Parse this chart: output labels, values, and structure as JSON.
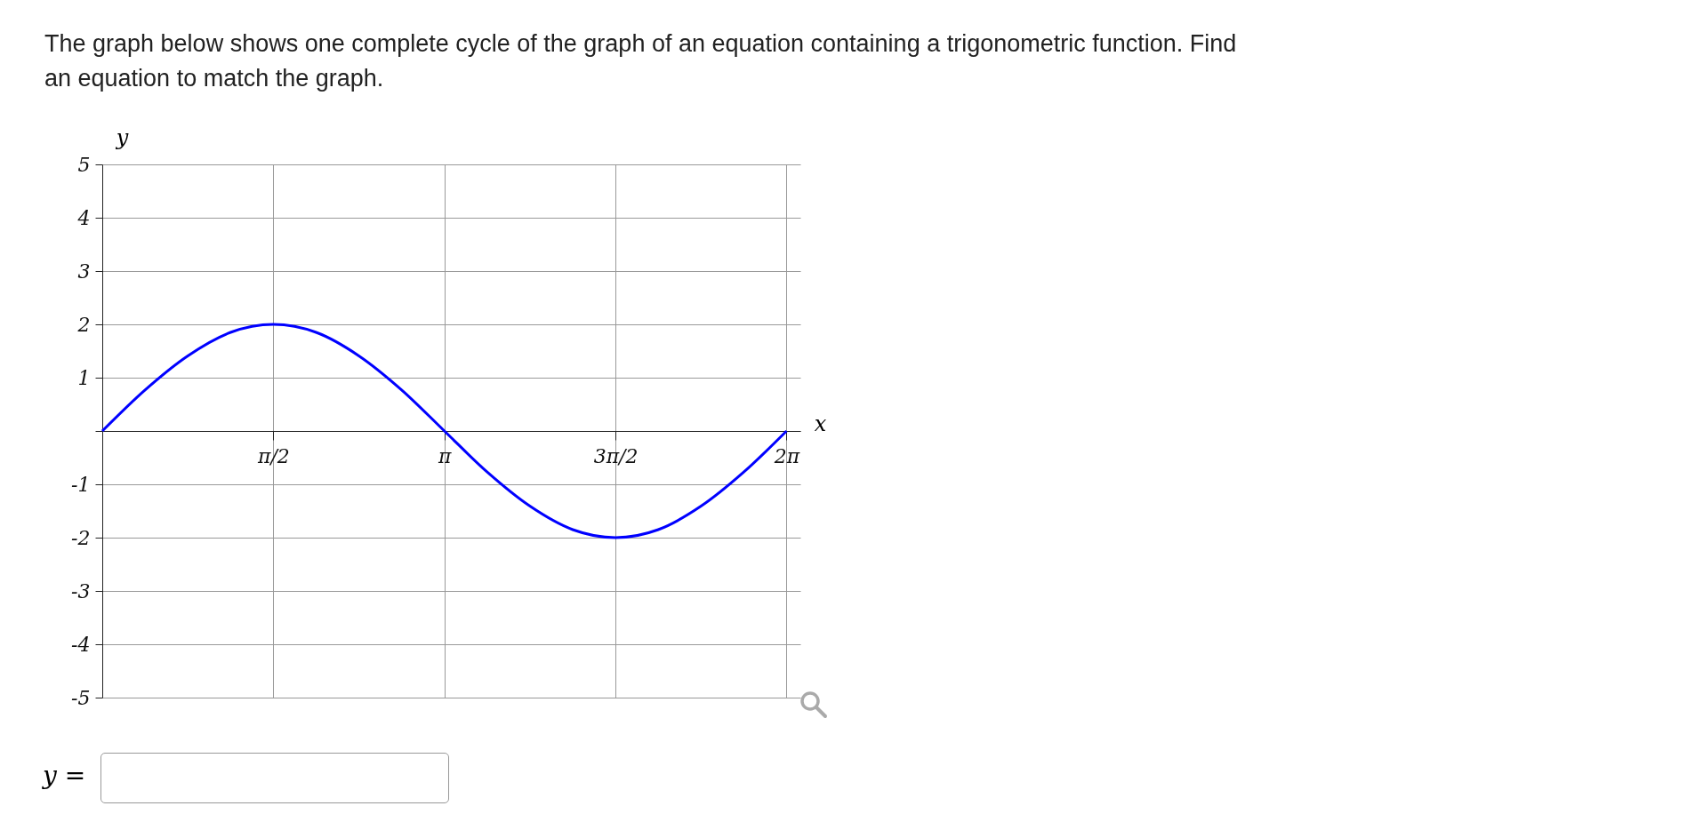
{
  "chart_data": {
    "type": "line",
    "title": "The graph below shows one complete cycle of the graph of an equation containing a trigonometric function. Find an equation to match the graph.",
    "xlabel": "x",
    "ylabel": "y",
    "x": [
      0,
      0.3927,
      0.7854,
      1.1781,
      1.5708,
      1.9635,
      2.3562,
      2.7489,
      3.1416,
      3.5343,
      3.927,
      4.3197,
      4.7124,
      5.1051,
      5.4978,
      5.8905,
      6.2832
    ],
    "series": [
      {
        "color": "#0000ff",
        "values": [
          0,
          0.77,
          1.41,
          1.85,
          2,
          1.85,
          1.41,
          0.77,
          0,
          -0.77,
          -1.41,
          -1.85,
          -2,
          -1.85,
          -1.41,
          -0.77,
          0
        ]
      }
    ],
    "xlim": [
      0,
      6.41
    ],
    "ylim": [
      -5,
      5
    ],
    "xticks": [
      {
        "value": 1.5708,
        "label": "π/2"
      },
      {
        "value": 3.1416,
        "label": "π"
      },
      {
        "value": 4.7124,
        "label": "3π/2"
      },
      {
        "value": 6.2832,
        "label": "2π"
      }
    ],
    "yticks": [
      -5,
      -4,
      -3,
      -2,
      -1,
      {
        "value": 0,
        "label": null
      },
      1,
      2,
      3,
      4,
      5
    ],
    "grid": true,
    "marker": "none",
    "line_style": "solid",
    "annotations": [
      "y ="
    ]
  }
}
